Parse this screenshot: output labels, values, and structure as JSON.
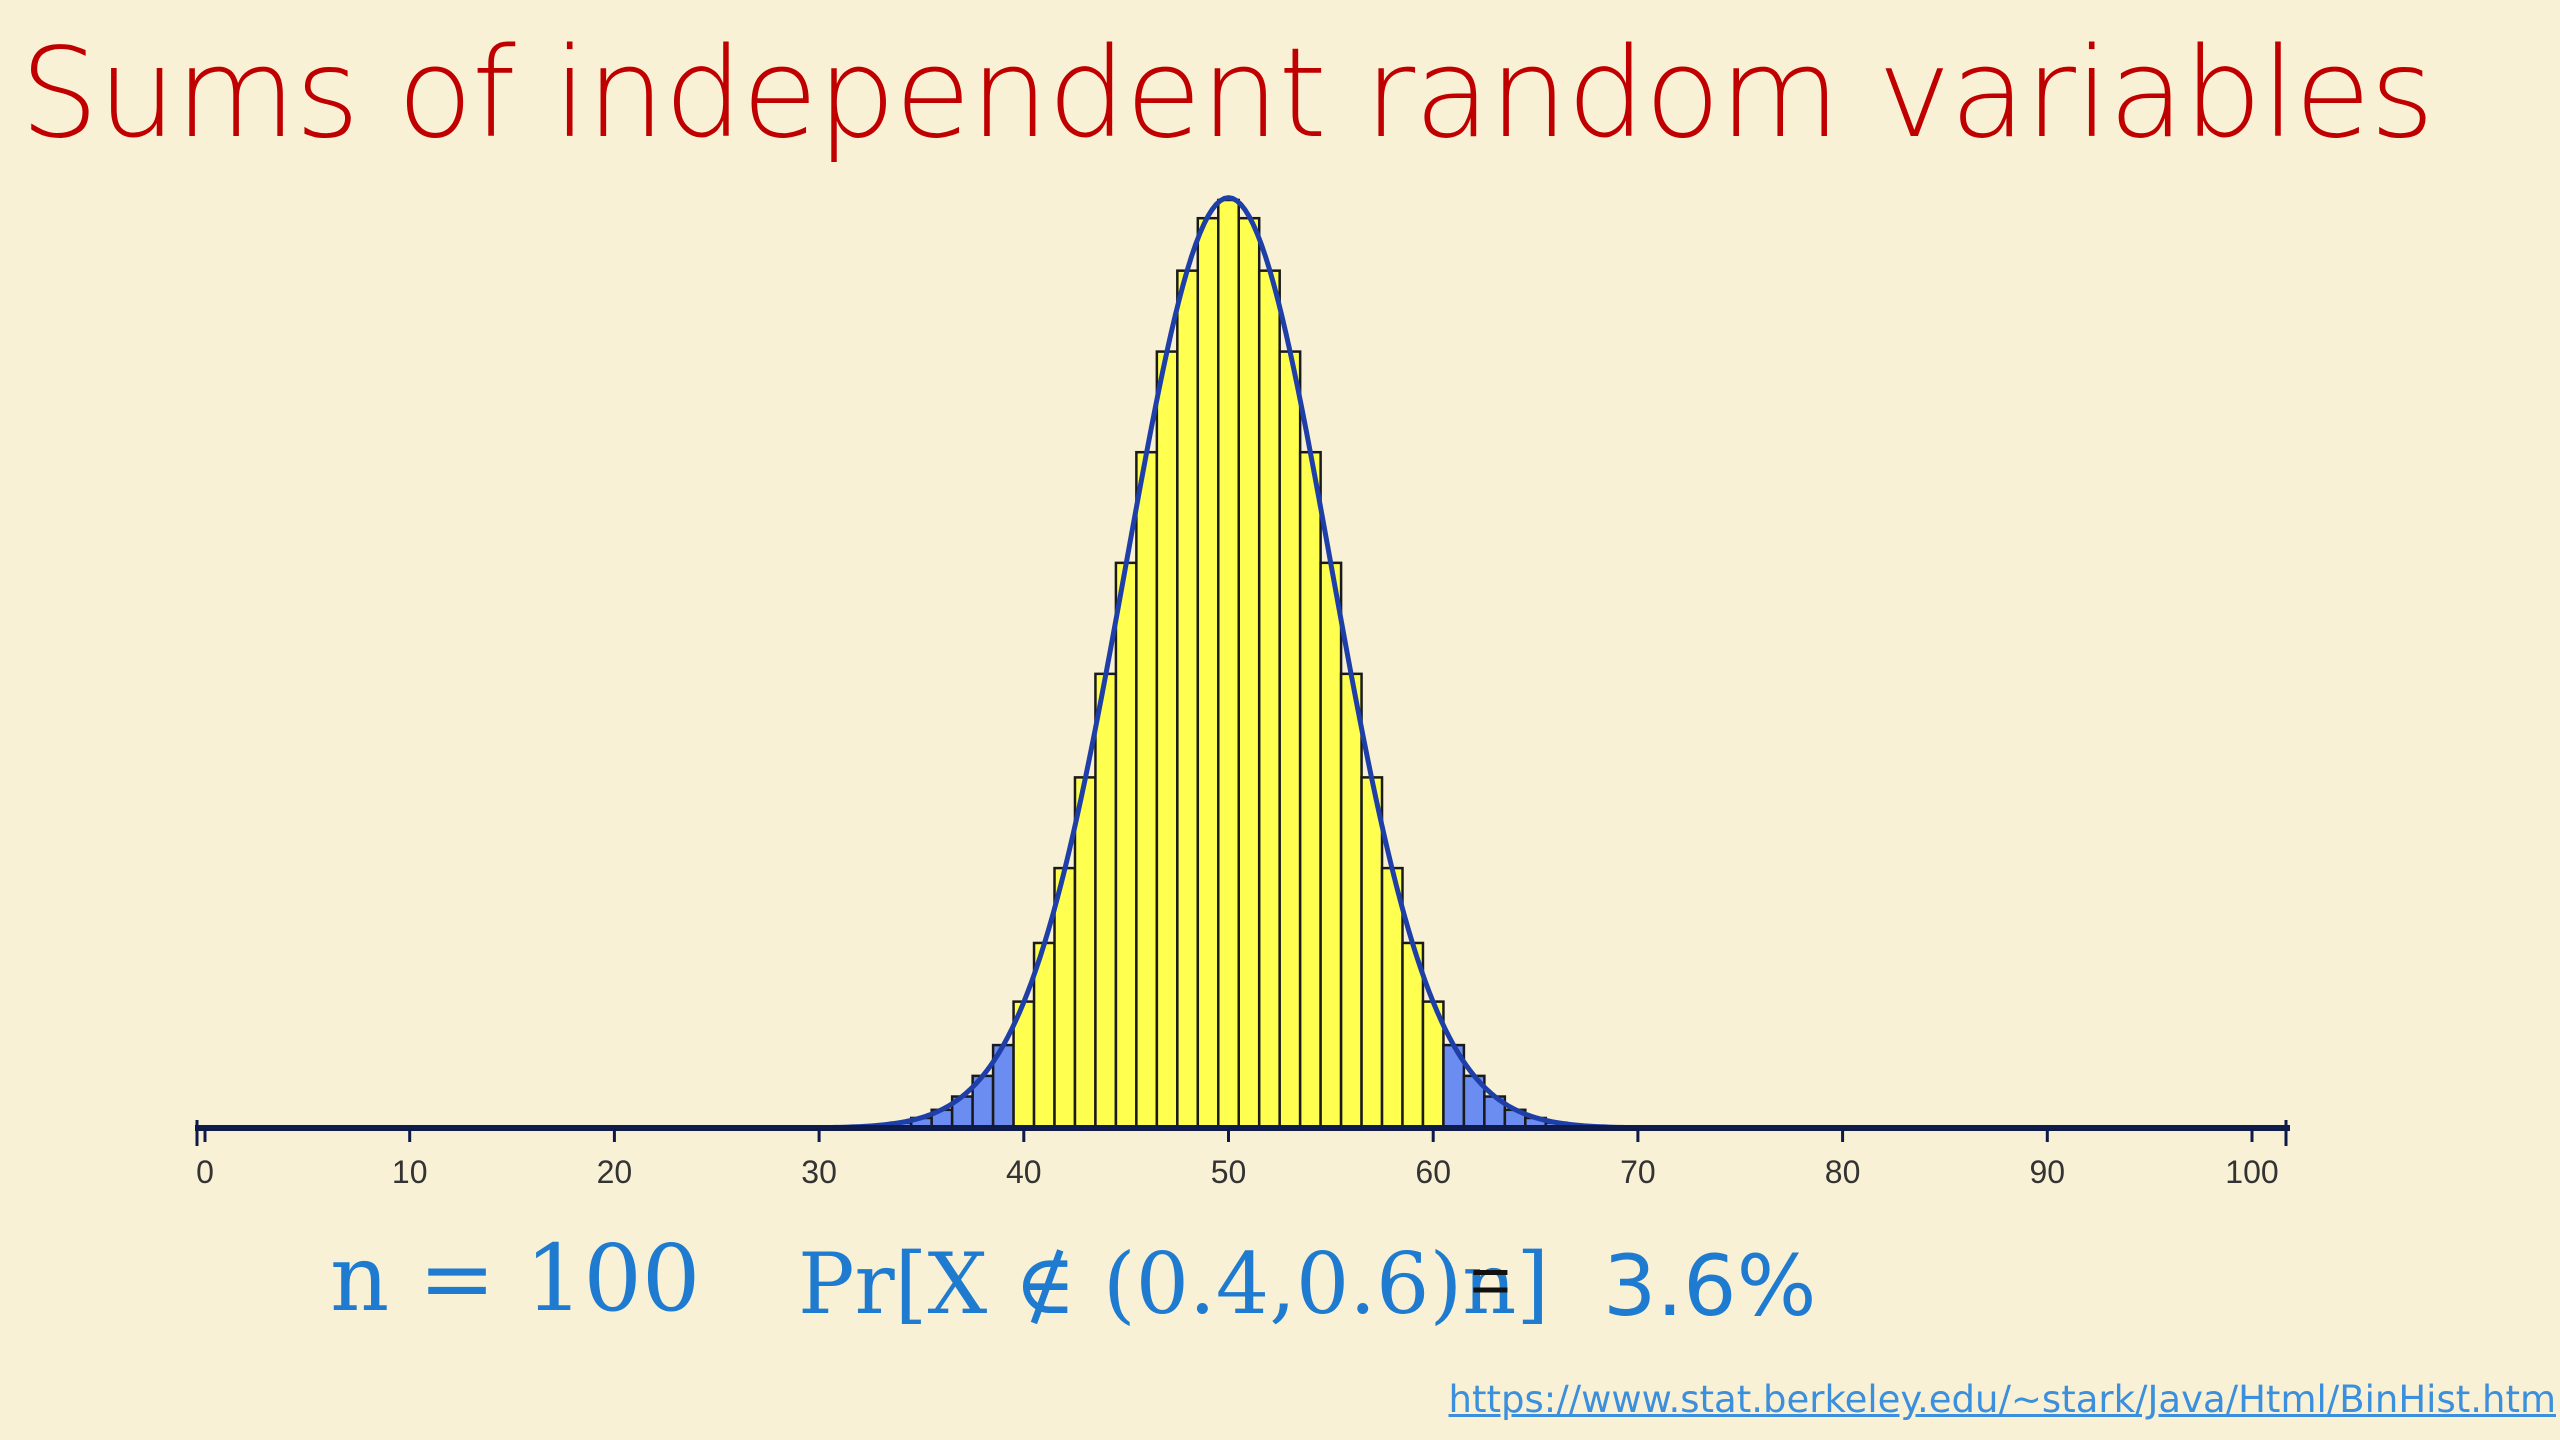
{
  "slide": {
    "title": "Sums of independent random variables",
    "formula_n": "n = 100",
    "formula_pr": "Pr[X ∉ (0.4,0.6)n]",
    "formula_eq": "=",
    "formula_value": "3.6%",
    "source_link": "https://www.stat.berkeley.edu/~stark/Java/Html/BinHist.htm"
  },
  "chart_data": {
    "type": "bar",
    "title": "",
    "xlabel": "",
    "ylabel": "",
    "n": 100,
    "p": 0.5,
    "xlim": [
      0,
      100
    ],
    "x_ticks": [
      "0",
      "10",
      "20",
      "30",
      "40",
      "50",
      "60",
      "70",
      "80",
      "90",
      "100"
    ],
    "highlight_range": [
      40,
      60
    ],
    "series": [
      {
        "x": [
          30,
          31,
          32,
          33,
          34,
          35,
          36,
          37,
          38,
          39,
          40,
          41,
          42,
          43,
          44,
          45,
          46,
          47,
          48,
          49,
          50,
          51,
          52,
          53,
          54,
          55,
          56,
          57,
          58,
          59,
          60,
          61,
          62,
          63,
          64,
          65,
          66,
          67,
          68,
          69,
          70
        ],
        "values": [
          2e-05,
          5e-05,
          0.00011,
          0.00023,
          0.00046,
          0.00086,
          0.00156,
          0.0027,
          0.00447,
          0.00711,
          0.01084,
          0.01587,
          0.02229,
          0.03007,
          0.03895,
          0.04847,
          0.05796,
          0.06659,
          0.07353,
          0.07803,
          0.07959,
          0.07803,
          0.07353,
          0.06659,
          0.05796,
          0.04847,
          0.03895,
          0.03007,
          0.02229,
          0.01587,
          0.01084,
          0.00711,
          0.00447,
          0.0027,
          0.00156,
          0.00086,
          0.00046,
          0.00023,
          0.00011,
          5e-05,
          2e-05
        ]
      }
    ],
    "colors": {
      "inside_bar": "#ffff50",
      "outside_bar": "#6b8cf0",
      "bar_edge": "#1a1a1a",
      "curve": "#1f3fa8",
      "axis": "#0d1a4a"
    }
  }
}
